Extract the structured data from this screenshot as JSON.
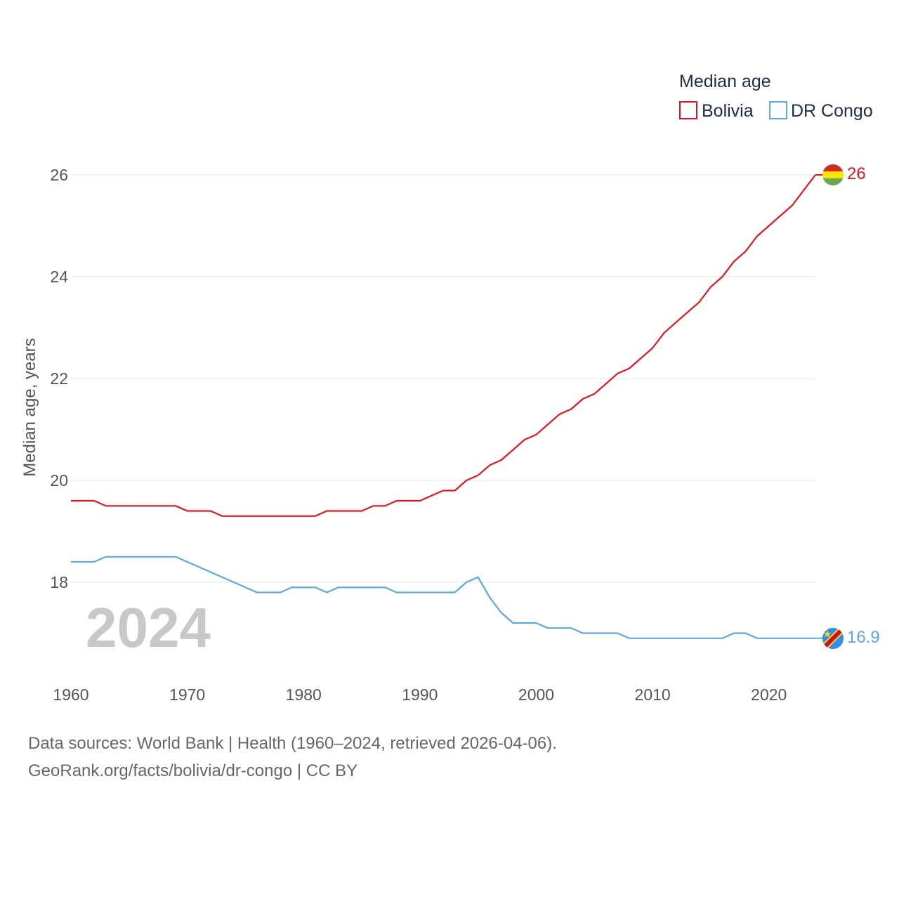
{
  "chart_data": {
    "type": "line",
    "legend_title": "Median age",
    "ylabel": "Median age, years",
    "year_label": "2024",
    "x": [
      1960,
      1961,
      1962,
      1963,
      1964,
      1965,
      1966,
      1967,
      1968,
      1969,
      1970,
      1971,
      1972,
      1973,
      1974,
      1975,
      1976,
      1977,
      1978,
      1979,
      1980,
      1981,
      1982,
      1983,
      1984,
      1985,
      1986,
      1987,
      1988,
      1989,
      1990,
      1991,
      1992,
      1993,
      1994,
      1995,
      1996,
      1997,
      1998,
      1999,
      2000,
      2001,
      2002,
      2003,
      2004,
      2005,
      2006,
      2007,
      2008,
      2009,
      2010,
      2011,
      2012,
      2013,
      2014,
      2015,
      2016,
      2017,
      2018,
      2019,
      2020,
      2021,
      2022,
      2023,
      2024
    ],
    "xlim": [
      1960,
      2024
    ],
    "ylim": [
      16.4,
      26.6
    ],
    "xticks": [
      1960,
      1970,
      1980,
      1990,
      2000,
      2010,
      2020
    ],
    "yticks": [
      18,
      20,
      22,
      24,
      26
    ],
    "series": [
      {
        "name": "Bolivia",
        "color": "#e8141d",
        "end_label": "26",
        "values": [
          19.6,
          19.6,
          19.6,
          19.5,
          19.5,
          19.5,
          19.5,
          19.5,
          19.5,
          19.5,
          19.4,
          19.4,
          19.4,
          19.3,
          19.3,
          19.3,
          19.3,
          19.3,
          19.3,
          19.3,
          19.3,
          19.3,
          19.4,
          19.4,
          19.4,
          19.4,
          19.5,
          19.5,
          19.6,
          19.6,
          19.6,
          19.7,
          19.8,
          19.8,
          20.0,
          20.1,
          20.3,
          20.4,
          20.6,
          20.8,
          20.9,
          21.1,
          21.3,
          21.4,
          21.6,
          21.7,
          21.9,
          22.1,
          22.2,
          22.4,
          22.6,
          22.9,
          23.1,
          23.3,
          23.5,
          23.8,
          24.0,
          24.3,
          24.5,
          24.8,
          25.0,
          25.2,
          25.4,
          25.7,
          26.0
        ]
      },
      {
        "name": "DR Congo",
        "color": "#5aa8ea",
        "end_label": "16.9",
        "values": [
          18.4,
          18.4,
          18.4,
          18.5,
          18.5,
          18.5,
          18.5,
          18.5,
          18.5,
          18.5,
          18.4,
          18.3,
          18.2,
          18.1,
          18.0,
          17.9,
          17.8,
          17.8,
          17.8,
          17.9,
          17.9,
          17.9,
          17.8,
          17.9,
          17.9,
          17.9,
          17.9,
          17.9,
          17.8,
          17.8,
          17.8,
          17.8,
          17.8,
          17.8,
          18.0,
          18.1,
          17.7,
          17.4,
          17.2,
          17.2,
          17.2,
          17.1,
          17.1,
          17.1,
          17.0,
          17.0,
          17.0,
          17.0,
          16.9,
          16.9,
          16.9,
          16.9,
          16.9,
          16.9,
          16.9,
          16.9,
          16.9,
          17.0,
          17.0,
          16.9,
          16.9,
          16.9,
          16.9,
          16.9,
          16.9
        ]
      }
    ]
  },
  "source": {
    "line1": "Data sources: World Bank | Health (1960–2024, retrieved 2026-04-06).",
    "line2": "GeoRank.org/facts/bolivia/dr-congo | CC BY"
  }
}
